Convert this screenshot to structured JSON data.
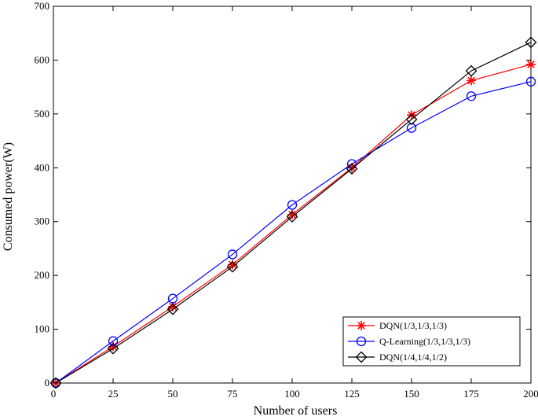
{
  "chart_data": {
    "type": "line",
    "title": "",
    "xlabel": "Number of users",
    "ylabel": "Consumed power(W)",
    "xlim": [
      0,
      200
    ],
    "ylim": [
      0,
      700
    ],
    "xticks": [
      0,
      25,
      50,
      75,
      100,
      125,
      150,
      175,
      200
    ],
    "yticks": [
      0,
      100,
      200,
      300,
      400,
      500,
      600,
      700
    ],
    "grid": false,
    "legend_position": "bottom-right",
    "x": [
      1,
      25,
      50,
      75,
      100,
      125,
      150,
      175,
      200
    ],
    "series": [
      {
        "name": "DQN(1/3,1/3,1/3)",
        "values": [
          0,
          68,
          142,
          220,
          313,
          400,
          498,
          562,
          592
        ],
        "color": "#ff0000",
        "marker": "asterisk"
      },
      {
        "name": "Q-Learning(1/3,1/3,1/3)",
        "values": [
          0,
          78,
          157,
          239,
          331,
          407,
          474,
          533,
          560
        ],
        "color": "#0000ff",
        "marker": "circle"
      },
      {
        "name": "DQN(1/4,1/4,1/2)",
        "values": [
          0,
          64,
          137,
          216,
          309,
          398,
          490,
          580,
          633
        ],
        "color": "#000000",
        "marker": "diamond"
      }
    ]
  }
}
